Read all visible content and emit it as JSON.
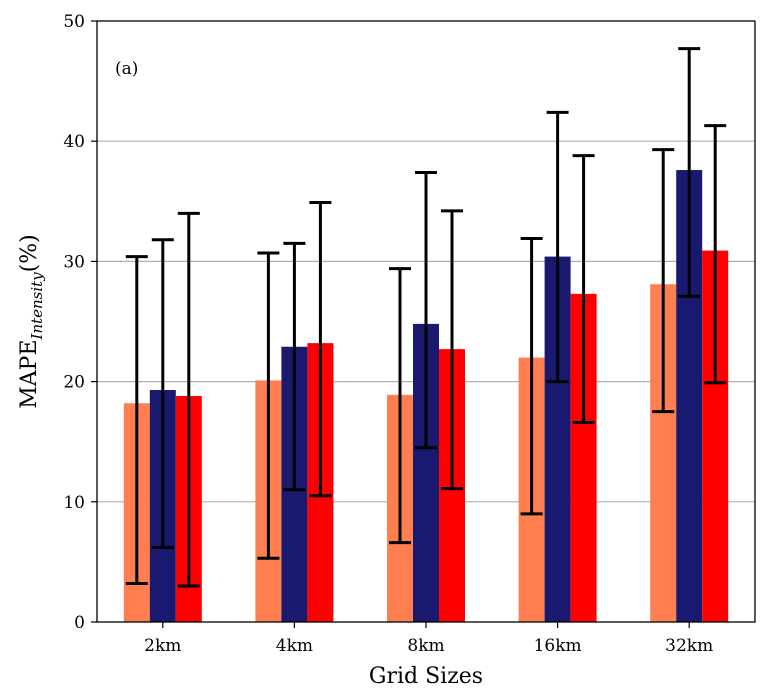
{
  "chart_data": {
    "type": "bar",
    "panel_label": "(a)",
    "xlabel": "Grid Sizes",
    "ylabel": "MAPE",
    "ylabel_subscript": "Intensity",
    "ylabel_suffix": "(%)",
    "categories": [
      "2km",
      "4km",
      "8km",
      "16km",
      "32km"
    ],
    "ylim": [
      0,
      50
    ],
    "yticks": [
      0,
      10,
      20,
      30,
      40,
      50
    ],
    "grid": "horizontal",
    "legend": "none",
    "series": [
      {
        "color": "#ff7f50",
        "values": [
          18.2,
          20.1,
          18.9,
          22.0,
          28.1
        ],
        "error_low": [
          3.2,
          5.3,
          6.6,
          9.0,
          17.5
        ],
        "error_high": [
          30.4,
          30.7,
          29.4,
          31.9,
          39.3
        ]
      },
      {
        "color": "#191970",
        "values": [
          19.3,
          22.9,
          24.8,
          30.4,
          37.6
        ],
        "error_low": [
          6.2,
          11.0,
          14.5,
          20.0,
          27.1
        ],
        "error_high": [
          31.8,
          31.5,
          37.4,
          42.4,
          47.7
        ]
      },
      {
        "color": "#ff0000",
        "values": [
          18.8,
          23.2,
          22.7,
          27.3,
          30.9
        ],
        "error_low": [
          3.0,
          10.5,
          11.1,
          16.6,
          19.9
        ],
        "error_high": [
          34.0,
          34.9,
          34.2,
          38.8,
          41.3
        ]
      }
    ]
  }
}
